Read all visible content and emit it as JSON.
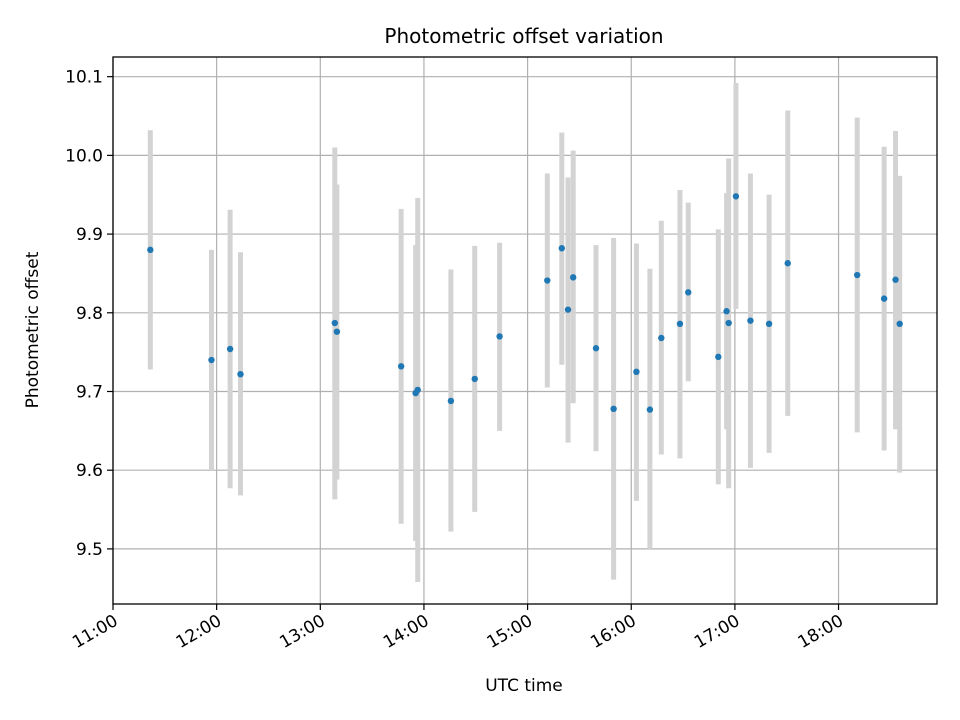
{
  "chart_data": {
    "type": "scatter",
    "title": "Photometric offset variation",
    "xlabel": "UTC time",
    "ylabel": "Photometric offset",
    "xlim": [
      11.0,
      18.95
    ],
    "ylim": [
      9.43,
      10.125
    ],
    "grid": true,
    "xticks": [
      {
        "value": 11,
        "label": "11:00"
      },
      {
        "value": 12,
        "label": "12:00"
      },
      {
        "value": 13,
        "label": "13:00"
      },
      {
        "value": 14,
        "label": "14:00"
      },
      {
        "value": 15,
        "label": "15:00"
      },
      {
        "value": 16,
        "label": "16:00"
      },
      {
        "value": 17,
        "label": "17:00"
      },
      {
        "value": 18,
        "label": "18:00"
      }
    ],
    "yticks": [
      {
        "value": 9.5,
        "label": "9.5"
      },
      {
        "value": 9.6,
        "label": "9.6"
      },
      {
        "value": 9.7,
        "label": "9.7"
      },
      {
        "value": 9.8,
        "label": "9.8"
      },
      {
        "value": 9.9,
        "label": "9.9"
      },
      {
        "value": 10.0,
        "label": "10.0"
      },
      {
        "value": 10.1,
        "label": "10.1"
      }
    ],
    "colors": {
      "marker": "#1f77b4",
      "errorbar": "#d3d3d3",
      "grid": "#b0b0b0"
    },
    "points": [
      {
        "x": 11.36,
        "y": 9.88,
        "lo": 9.728,
        "hi": 10.032
      },
      {
        "x": 11.95,
        "y": 9.74,
        "lo": 9.6,
        "hi": 9.88
      },
      {
        "x": 12.13,
        "y": 9.754,
        "lo": 9.577,
        "hi": 9.931
      },
      {
        "x": 12.23,
        "y": 9.722,
        "lo": 9.568,
        "hi": 9.877
      },
      {
        "x": 13.14,
        "y": 9.787,
        "lo": 9.563,
        "hi": 10.01
      },
      {
        "x": 13.16,
        "y": 9.776,
        "lo": 9.588,
        "hi": 9.963
      },
      {
        "x": 13.78,
        "y": 9.732,
        "lo": 9.532,
        "hi": 9.932
      },
      {
        "x": 13.92,
        "y": 9.698,
        "lo": 9.51,
        "hi": 9.886
      },
      {
        "x": 13.94,
        "y": 9.702,
        "lo": 9.458,
        "hi": 9.946
      },
      {
        "x": 14.26,
        "y": 9.688,
        "lo": 9.522,
        "hi": 9.855
      },
      {
        "x": 14.49,
        "y": 9.716,
        "lo": 9.547,
        "hi": 9.885
      },
      {
        "x": 14.73,
        "y": 9.77,
        "lo": 9.65,
        "hi": 9.889
      },
      {
        "x": 15.19,
        "y": 9.841,
        "lo": 9.705,
        "hi": 9.977
      },
      {
        "x": 15.33,
        "y": 9.882,
        "lo": 9.734,
        "hi": 10.029
      },
      {
        "x": 15.39,
        "y": 9.804,
        "lo": 9.635,
        "hi": 9.972
      },
      {
        "x": 15.44,
        "y": 9.845,
        "lo": 9.685,
        "hi": 10.006
      },
      {
        "x": 15.66,
        "y": 9.755,
        "lo": 9.624,
        "hi": 9.886
      },
      {
        "x": 15.83,
        "y": 9.678,
        "lo": 9.461,
        "hi": 9.895
      },
      {
        "x": 16.05,
        "y": 9.725,
        "lo": 9.561,
        "hi": 9.888
      },
      {
        "x": 16.18,
        "y": 9.677,
        "lo": 9.5,
        "hi": 9.856
      },
      {
        "x": 16.29,
        "y": 9.768,
        "lo": 9.62,
        "hi": 9.917
      },
      {
        "x": 16.47,
        "y": 9.786,
        "lo": 9.615,
        "hi": 9.956
      },
      {
        "x": 16.55,
        "y": 9.826,
        "lo": 9.713,
        "hi": 9.94
      },
      {
        "x": 16.84,
        "y": 9.744,
        "lo": 9.582,
        "hi": 9.906
      },
      {
        "x": 16.92,
        "y": 9.802,
        "lo": 9.652,
        "hi": 9.952
      },
      {
        "x": 16.94,
        "y": 9.787,
        "lo": 9.577,
        "hi": 9.996
      },
      {
        "x": 17.01,
        "y": 9.948,
        "lo": 9.805,
        "hi": 10.092
      },
      {
        "x": 17.15,
        "y": 9.79,
        "lo": 9.603,
        "hi": 9.977
      },
      {
        "x": 17.33,
        "y": 9.786,
        "lo": 9.622,
        "hi": 9.95
      },
      {
        "x": 17.51,
        "y": 9.863,
        "lo": 9.669,
        "hi": 10.057
      },
      {
        "x": 18.18,
        "y": 9.848,
        "lo": 9.648,
        "hi": 10.048
      },
      {
        "x": 18.44,
        "y": 9.818,
        "lo": 9.625,
        "hi": 10.011
      },
      {
        "x": 18.55,
        "y": 9.842,
        "lo": 9.652,
        "hi": 10.031
      },
      {
        "x": 18.59,
        "y": 9.786,
        "lo": 9.597,
        "hi": 9.974
      }
    ]
  }
}
